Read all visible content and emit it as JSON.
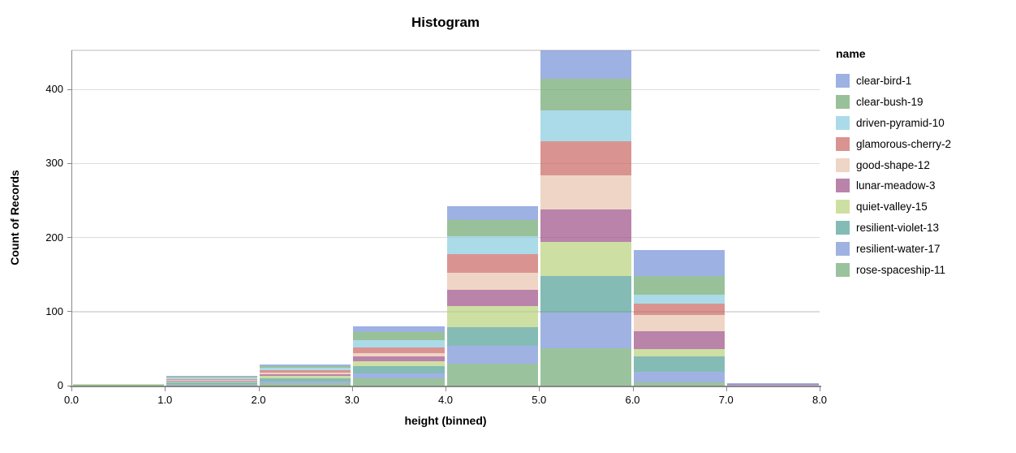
{
  "chart_data": {
    "type": "bar",
    "subtype": "stacked-histogram",
    "title": "Histogram",
    "xlabel": "height (binned)",
    "ylabel": "Count of Records",
    "legend_title": "name",
    "legend_position": "right",
    "grid": true,
    "stack_order": "first-series-on-top",
    "bar_opacity": 0.7,
    "x_bin_edges": [
      0,
      1,
      2,
      3,
      4,
      5,
      6,
      7,
      8
    ],
    "x_tick_labels": [
      "0.0",
      "1.0",
      "2.0",
      "3.0",
      "4.0",
      "5.0",
      "6.0",
      "7.0",
      "8.0"
    ],
    "y_ticks": [
      0,
      100,
      200,
      300,
      400
    ],
    "ylim": [
      0,
      453
    ],
    "bin_totals": [
      2,
      13,
      29,
      80,
      242,
      453,
      183,
      3
    ],
    "series": [
      {
        "name": "clear-bird-1",
        "color": "#7390d7",
        "values": [
          0,
          1,
          3,
          8,
          18,
          38,
          35,
          1
        ]
      },
      {
        "name": "clear-bush-19",
        "color": "#6da66d",
        "values": [
          0,
          1,
          2,
          10,
          22,
          43,
          25,
          0
        ]
      },
      {
        "name": "driven-pyramid-10",
        "color": "#87ccde",
        "values": [
          0,
          2,
          3,
          10,
          24,
          42,
          12,
          0
        ]
      },
      {
        "name": "glamorous-cherry-2",
        "color": "#c96663",
        "values": [
          0,
          1,
          3,
          8,
          26,
          46,
          16,
          0
        ]
      },
      {
        "name": "good-shape-12",
        "color": "#e8c3ac",
        "values": [
          0,
          1,
          3,
          5,
          23,
          46,
          21,
          0
        ]
      },
      {
        "name": "lunar-meadow-3",
        "color": "#9c4f86",
        "values": [
          0,
          1,
          2,
          6,
          22,
          44,
          25,
          1
        ]
      },
      {
        "name": "quiet-valley-15",
        "color": "#b9d17c",
        "values": [
          1,
          2,
          3,
          7,
          28,
          46,
          10,
          0
        ]
      },
      {
        "name": "resilient-violet-13",
        "color": "#519e95",
        "values": [
          0,
          2,
          4,
          9,
          25,
          49,
          20,
          0
        ]
      },
      {
        "name": "resilient-water-17",
        "color": "#7791d6",
        "values": [
          0,
          1,
          3,
          7,
          24,
          49,
          15,
          1
        ]
      },
      {
        "name": "rose-spaceship-11",
        "color": "#6fa973",
        "values": [
          1,
          1,
          3,
          10,
          30,
          50,
          4,
          0
        ]
      }
    ],
    "colors": {
      "gridline": "#dddddd",
      "axis_domain": "#888888",
      "text": "#000000",
      "background": "#ffffff"
    }
  }
}
